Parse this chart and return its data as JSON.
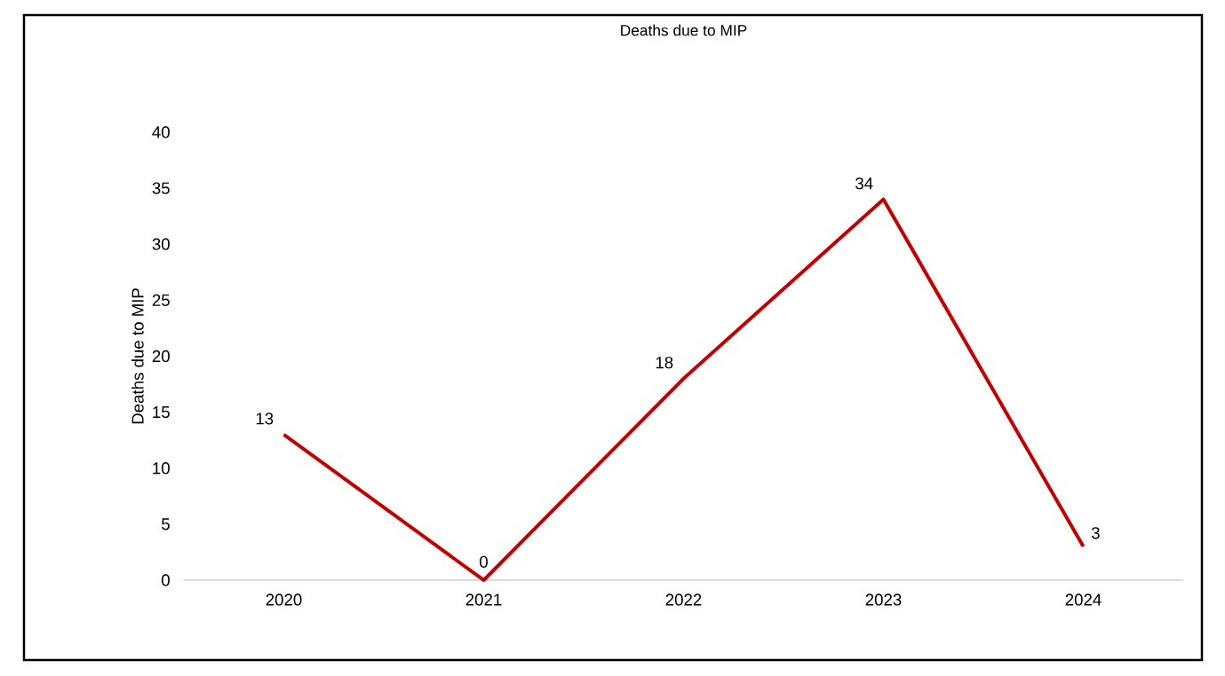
{
  "chart_data": {
    "type": "line",
    "title": "Deaths due to MIP",
    "ylabel": "Deaths due to MIP",
    "categories": [
      "2020",
      "2021",
      "2022",
      "2023",
      "2024"
    ],
    "values": [
      13,
      0,
      18,
      34,
      3
    ],
    "color": "#c00000",
    "ylim": [
      0,
      40
    ],
    "yticks": [
      0,
      5,
      10,
      15,
      20,
      25,
      30,
      35,
      40
    ],
    "data_labels": true
  }
}
